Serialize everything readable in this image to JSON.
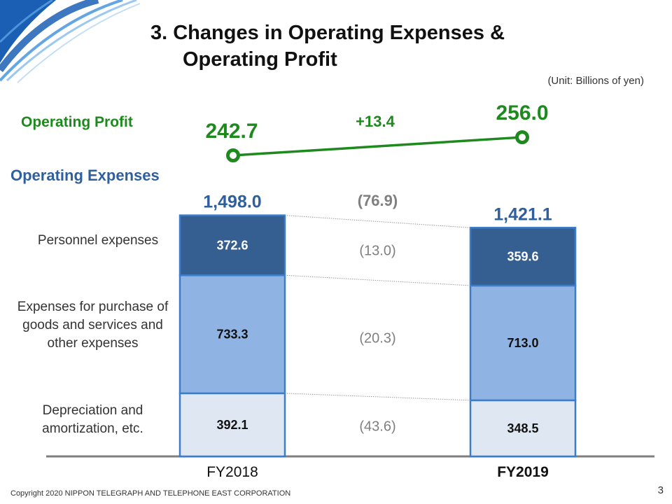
{
  "slide": {
    "title_line1": "3. Changes in Operating Expenses &",
    "title_line2": "Operating Profit",
    "unit": "(Unit: Billions of yen)",
    "operating_profit_label": "Operating Profit",
    "operating_expenses_label": "Operating Expenses",
    "footer": "Copyright 2020 NIPPON TELEGRAPH AND TELEPHONE EAST CORPORATION",
    "page_number": "3"
  },
  "colors": {
    "profit": "#1e8a1e",
    "expenses_title": "#2e5f9e",
    "personnel": "#355f91",
    "purchase": "#8fb3e2",
    "depreciation": "#dfe7f3",
    "bar_border": "#3d7cc9",
    "change_text": "#7f7f7f"
  },
  "chart_data": [
    {
      "type": "line",
      "title": "Operating Profit",
      "categories": [
        "FY2018",
        "FY2019"
      ],
      "values": [
        242.7,
        256.0
      ],
      "value_labels": [
        "242.7",
        "256.0"
      ],
      "change_label": "+13.4"
    },
    {
      "type": "bar",
      "stacked": true,
      "title": "Operating Expenses",
      "categories": [
        "FY2018",
        "FY2019"
      ],
      "series": [
        {
          "name": "Depreciation and amortization, etc.",
          "values": [
            392.1,
            348.5
          ],
          "labels": [
            "392.1",
            "348.5"
          ],
          "change": "(43.6)"
        },
        {
          "name": "Expenses for purchase of goods and services and other expenses",
          "values": [
            733.3,
            713.0
          ],
          "labels": [
            "733.3",
            "713.0"
          ],
          "change": "(20.3)"
        },
        {
          "name": "Personnel expenses",
          "values": [
            372.6,
            359.6
          ],
          "labels": [
            "372.6",
            "359.6"
          ],
          "change": "(13.0)"
        }
      ],
      "totals": [
        1498.0,
        1421.1
      ],
      "total_labels": [
        "1,498.0",
        "1,421.1"
      ],
      "total_change": "(76.9)",
      "category_labels": [
        "Personnel expenses",
        "Expenses for purchase of goods and services and other expenses",
        "Depreciation and amortization, etc."
      ]
    }
  ]
}
